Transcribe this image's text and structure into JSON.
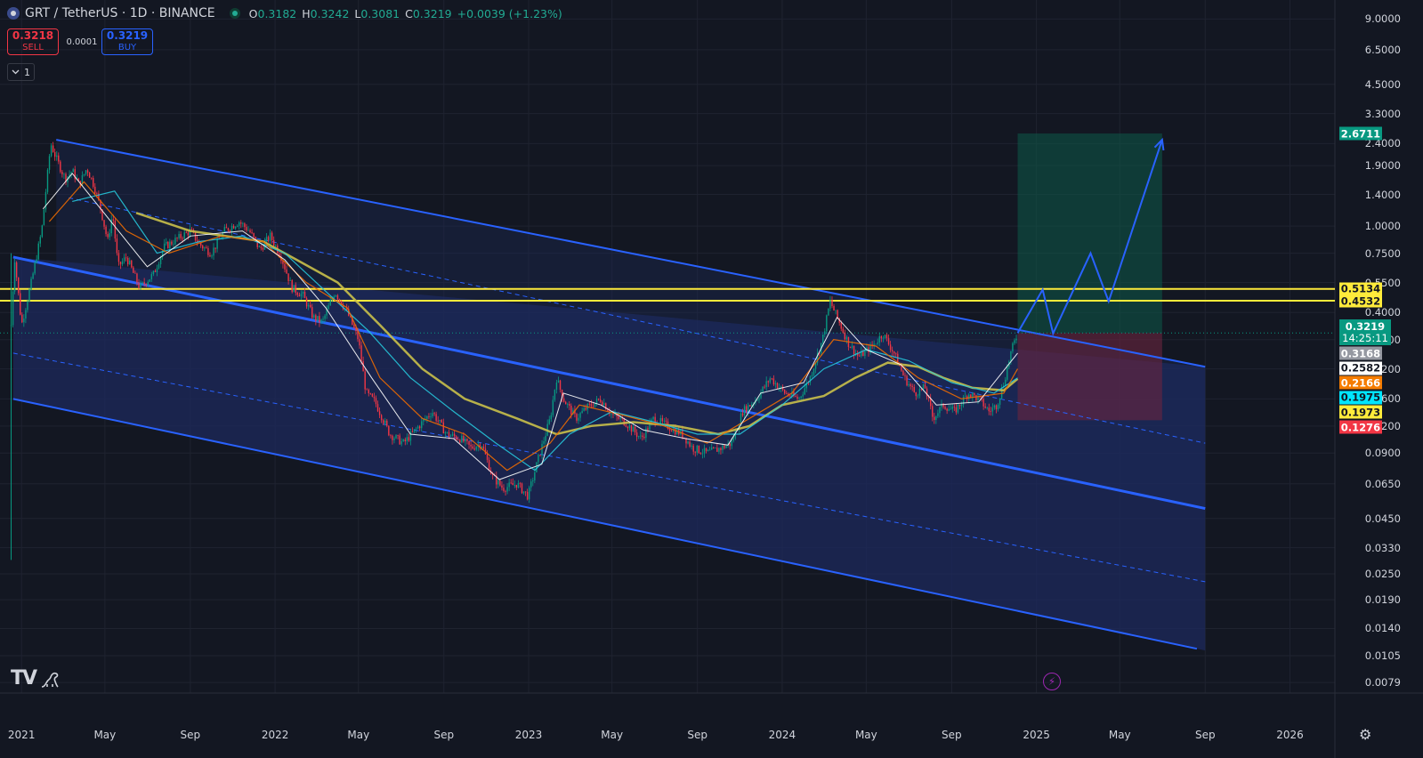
{
  "header": {
    "symbol": "GRT / TetherUS · 1D · BINANCE",
    "o_label": "O",
    "o_value": "0.3182",
    "h_label": "H",
    "h_value": "0.3242",
    "l_label": "L",
    "l_value": "0.3081",
    "c_label": "C",
    "c_value": "0.3219",
    "change": "+0.0039 (+1.23%)"
  },
  "trade": {
    "sell_price": "0.3218",
    "sell_label": "SELL",
    "spread": "0.0001",
    "buy_price": "0.3219",
    "buy_label": "BUY"
  },
  "interval_button": {
    "label": "1",
    "icon": "chevron-down-icon"
  },
  "price_labels": [
    {
      "value": "2.6711",
      "color": "#089981",
      "text_color": "#ffffff"
    },
    {
      "value": "0.5134",
      "color": "#ffeb3b",
      "text_color": "#131722"
    },
    {
      "value": "0.4532",
      "color": "#ffeb3b",
      "text_color": "#131722"
    },
    {
      "value": "0.3168",
      "color": "#9598a1",
      "text_color": "#ffffff"
    },
    {
      "value": "0.2582",
      "color": "#ffffff",
      "text_color": "#131722"
    },
    {
      "value": "0.2166",
      "color": "#f57c00",
      "text_color": "#ffffff"
    },
    {
      "value": "0.1975",
      "color": "#00e5ff",
      "text_color": "#131722"
    },
    {
      "value": "0.1973",
      "color": "#ffeb3b",
      "text_color": "#131722"
    },
    {
      "value": "0.1276",
      "color": "#f23645",
      "text_color": "#ffffff"
    }
  ],
  "current_price": {
    "value": "0.3219",
    "countdown": "14:25:11"
  },
  "footer": {
    "logo": "TV",
    "icons": [
      "dino-icon",
      "bolt-icon",
      "gear-icon"
    ]
  },
  "colors": {
    "background": "#131722",
    "up": "#089981",
    "down": "#f23645",
    "channel": "#2962ff",
    "channel_fill": "#1e2a5c",
    "ma_long": "#c9c04a",
    "ma_mid": "#26c6da",
    "ma_short": "#ef6c00",
    "ma_fast": "#ffffff",
    "target_zone": "#0d4a3f",
    "stop_zone": "#4a1f34"
  },
  "chart_data": {
    "type": "candlestick",
    "title": "GRT / TetherUS · 1D · BINANCE",
    "scale": "log",
    "ylim": [
      0.0068,
      10.5
    ],
    "xlim": [
      "2020-12-01",
      "2026-06-30"
    ],
    "y_ticks": [
      "9.0000",
      "6.5000",
      "4.5000",
      "3.3000",
      "2.4000",
      "1.9000",
      "1.4000",
      "1.0000",
      "0.7500",
      "0.5500",
      "0.4000",
      "0.3000",
      "0.2200",
      "0.1600",
      "0.1200",
      "0.0900",
      "0.0650",
      "0.0450",
      "0.0330",
      "0.0250",
      "0.0190",
      "0.0140",
      "0.0105",
      "0.0079"
    ],
    "x_ticks": [
      {
        "label": "2021",
        "date": "2021-01-01"
      },
      {
        "label": "May",
        "date": "2021-05-01"
      },
      {
        "label": "Sep",
        "date": "2021-09-01"
      },
      {
        "label": "2022",
        "date": "2022-01-01"
      },
      {
        "label": "May",
        "date": "2022-05-01"
      },
      {
        "label": "Sep",
        "date": "2022-09-01"
      },
      {
        "label": "2023",
        "date": "2023-01-01"
      },
      {
        "label": "May",
        "date": "2023-05-01"
      },
      {
        "label": "Sep",
        "date": "2023-09-01"
      },
      {
        "label": "2024",
        "date": "2024-01-01"
      },
      {
        "label": "May",
        "date": "2024-05-01"
      },
      {
        "label": "Sep",
        "date": "2024-09-01"
      },
      {
        "label": "2025",
        "date": "2025-01-01"
      },
      {
        "label": "May",
        "date": "2025-05-01"
      },
      {
        "label": "Sep",
        "date": "2025-09-01"
      },
      {
        "label": "2026",
        "date": "2026-01-01"
      }
    ],
    "price_path": [
      [
        "2020-12-17",
        0.35
      ],
      [
        "2020-12-22",
        0.72
      ],
      [
        "2021-01-01",
        0.35
      ],
      [
        "2021-01-15",
        0.55
      ],
      [
        "2021-01-30",
        0.95
      ],
      [
        "2021-02-12",
        2.4
      ],
      [
        "2021-02-20",
        2.05
      ],
      [
        "2021-03-05",
        1.65
      ],
      [
        "2021-03-15",
        1.8
      ],
      [
        "2021-03-25",
        1.55
      ],
      [
        "2021-04-05",
        1.85
      ],
      [
        "2021-04-15",
        1.55
      ],
      [
        "2021-04-25",
        1.2
      ],
      [
        "2021-05-05",
        0.85
      ],
      [
        "2021-05-12",
        1.15
      ],
      [
        "2021-05-20",
        0.65
      ],
      [
        "2021-06-01",
        0.72
      ],
      [
        "2021-06-20",
        0.52
      ],
      [
        "2021-07-10",
        0.6
      ],
      [
        "2021-07-25",
        0.8
      ],
      [
        "2021-08-15",
        0.88
      ],
      [
        "2021-09-01",
        0.95
      ],
      [
        "2021-09-15",
        0.82
      ],
      [
        "2021-10-01",
        0.75
      ],
      [
        "2021-10-20",
        0.95
      ],
      [
        "2021-11-10",
        1.05
      ],
      [
        "2021-11-25",
        0.95
      ],
      [
        "2021-12-10",
        0.78
      ],
      [
        "2021-12-25",
        0.9
      ],
      [
        "2022-01-10",
        0.72
      ],
      [
        "2022-01-25",
        0.52
      ],
      [
        "2022-02-10",
        0.48
      ],
      [
        "2022-02-25",
        0.38
      ],
      [
        "2022-03-10",
        0.36
      ],
      [
        "2022-03-28",
        0.5
      ],
      [
        "2022-04-15",
        0.4
      ],
      [
        "2022-05-01",
        0.3
      ],
      [
        "2022-05-12",
        0.17
      ],
      [
        "2022-05-25",
        0.155
      ],
      [
        "2022-06-15",
        0.11
      ],
      [
        "2022-07-05",
        0.1
      ],
      [
        "2022-08-01",
        0.125
      ],
      [
        "2022-08-15",
        0.14
      ],
      [
        "2022-09-05",
        0.11
      ],
      [
        "2022-09-25",
        0.105
      ],
      [
        "2022-10-10",
        0.095
      ],
      [
        "2022-10-25",
        0.1
      ],
      [
        "2022-11-10",
        0.07
      ],
      [
        "2022-11-25",
        0.062
      ],
      [
        "2022-12-15",
        0.065
      ],
      [
        "2022-12-31",
        0.057
      ],
      [
        "2023-01-15",
        0.085
      ],
      [
        "2023-02-01",
        0.13
      ],
      [
        "2023-02-10",
        0.2
      ],
      [
        "2023-02-20",
        0.16
      ],
      [
        "2023-03-10",
        0.13
      ],
      [
        "2023-03-25",
        0.145
      ],
      [
        "2023-04-15",
        0.16
      ],
      [
        "2023-05-01",
        0.135
      ],
      [
        "2023-05-20",
        0.125
      ],
      [
        "2023-06-12",
        0.105
      ],
      [
        "2023-06-30",
        0.13
      ],
      [
        "2023-07-20",
        0.12
      ],
      [
        "2023-08-10",
        0.11
      ],
      [
        "2023-08-25",
        0.095
      ],
      [
        "2023-09-15",
        0.09
      ],
      [
        "2023-10-05",
        0.095
      ],
      [
        "2023-10-20",
        0.1
      ],
      [
        "2023-11-05",
        0.14
      ],
      [
        "2023-11-25",
        0.16
      ],
      [
        "2023-12-15",
        0.2
      ],
      [
        "2024-01-05",
        0.17
      ],
      [
        "2024-01-25",
        0.16
      ],
      [
        "2024-02-10",
        0.2
      ],
      [
        "2024-02-28",
        0.3
      ],
      [
        "2024-03-10",
        0.45
      ],
      [
        "2024-03-20",
        0.38
      ],
      [
        "2024-04-05",
        0.29
      ],
      [
        "2024-04-20",
        0.25
      ],
      [
        "2024-05-10",
        0.28
      ],
      [
        "2024-05-25",
        0.32
      ],
      [
        "2024-06-10",
        0.26
      ],
      [
        "2024-06-25",
        0.2
      ],
      [
        "2024-07-10",
        0.17
      ],
      [
        "2024-07-25",
        0.18
      ],
      [
        "2024-08-05",
        0.13
      ],
      [
        "2024-08-20",
        0.15
      ],
      [
        "2024-09-05",
        0.14
      ],
      [
        "2024-09-25",
        0.17
      ],
      [
        "2024-10-10",
        0.16
      ],
      [
        "2024-10-25",
        0.14
      ],
      [
        "2024-11-05",
        0.15
      ],
      [
        "2024-11-15",
        0.19
      ],
      [
        "2024-11-25",
        0.26
      ],
      [
        "2024-12-05",
        0.3219
      ]
    ],
    "channel": {
      "upper": [
        [
          "2021-02-20",
          2.5
        ],
        [
          "2025-09-01",
          0.225
        ]
      ],
      "mid_upper_dashed": [
        [
          "2021-03-10",
          1.35
        ],
        [
          "2025-09-01",
          0.1
        ]
      ],
      "middle": [
        [
          "2020-12-20",
          0.72
        ],
        [
          "2025-09-01",
          0.05
        ]
      ],
      "mid_lower_dashed": [
        [
          "2020-12-20",
          0.26
        ],
        [
          "2025-09-01",
          0.023
        ]
      ],
      "lower": [
        [
          "2020-12-20",
          0.16
        ],
        [
          "2025-08-20",
          0.0113
        ]
      ],
      "fill_start": "2020-12-20",
      "fill_end_upper": "2025-09-01"
    },
    "horizontal_levels": [
      0.5134,
      0.4532
    ],
    "position": {
      "start": "2024-12-05",
      "end": "2025-07-01",
      "entry": 0.3219,
      "target": 2.6711,
      "stop": 0.1276
    },
    "projection_path": [
      [
        "2024-12-05",
        0.3219
      ],
      [
        "2025-01-10",
        0.51
      ],
      [
        "2025-01-25",
        0.32
      ],
      [
        "2025-03-20",
        0.75
      ],
      [
        "2025-04-15",
        0.45
      ],
      [
        "2025-07-01",
        2.5
      ]
    ],
    "moving_averages": [
      {
        "color": "#c9c04a",
        "width": 2.5,
        "points": [
          [
            "2021-06-15",
            1.15
          ],
          [
            "2021-09-01",
            0.95
          ],
          [
            "2021-12-15",
            0.85
          ],
          [
            "2022-02-01",
            0.7
          ],
          [
            "2022-04-01",
            0.55
          ],
          [
            "2022-06-01",
            0.35
          ],
          [
            "2022-08-01",
            0.22
          ],
          [
            "2022-10-01",
            0.16
          ],
          [
            "2022-12-15",
            0.13
          ],
          [
            "2023-02-10",
            0.11
          ],
          [
            "2023-04-01",
            0.12
          ],
          [
            "2023-06-01",
            0.125
          ],
          [
            "2023-08-01",
            0.12
          ],
          [
            "2023-10-01",
            0.11
          ],
          [
            "2023-11-15",
            0.12
          ],
          [
            "2024-01-01",
            0.15
          ],
          [
            "2024-03-01",
            0.165
          ],
          [
            "2024-04-15",
            0.2
          ],
          [
            "2024-06-01",
            0.235
          ],
          [
            "2024-07-15",
            0.225
          ],
          [
            "2024-08-20",
            0.2
          ],
          [
            "2024-10-01",
            0.18
          ],
          [
            "2024-11-15",
            0.175
          ],
          [
            "2024-12-05",
            0.198
          ]
        ]
      },
      {
        "color": "#26c6da",
        "width": 1.2,
        "points": [
          [
            "2021-03-15",
            1.3
          ],
          [
            "2021-05-15",
            1.45
          ],
          [
            "2021-07-15",
            0.75
          ],
          [
            "2021-09-15",
            0.85
          ],
          [
            "2021-11-15",
            0.9
          ],
          [
            "2022-01-15",
            0.75
          ],
          [
            "2022-03-15",
            0.5
          ],
          [
            "2022-05-15",
            0.33
          ],
          [
            "2022-07-15",
            0.2
          ],
          [
            "2022-09-15",
            0.14
          ],
          [
            "2022-11-15",
            0.1
          ],
          [
            "2023-01-10",
            0.075
          ],
          [
            "2023-03-01",
            0.11
          ],
          [
            "2023-05-01",
            0.14
          ],
          [
            "2023-07-01",
            0.125
          ],
          [
            "2023-09-01",
            0.11
          ],
          [
            "2023-11-01",
            0.11
          ],
          [
            "2024-01-01",
            0.15
          ],
          [
            "2024-03-01",
            0.22
          ],
          [
            "2024-05-01",
            0.27
          ],
          [
            "2024-07-01",
            0.24
          ],
          [
            "2024-09-01",
            0.19
          ],
          [
            "2024-11-01",
            0.17
          ],
          [
            "2024-12-05",
            0.2
          ]
        ]
      },
      {
        "color": "#ef6c00",
        "width": 1.2,
        "points": [
          [
            "2021-02-10",
            1.05
          ],
          [
            "2021-04-01",
            1.6
          ],
          [
            "2021-06-01",
            0.95
          ],
          [
            "2021-08-01",
            0.75
          ],
          [
            "2021-10-15",
            0.9
          ],
          [
            "2021-12-15",
            0.85
          ],
          [
            "2022-02-15",
            0.55
          ],
          [
            "2022-04-15",
            0.42
          ],
          [
            "2022-06-01",
            0.2
          ],
          [
            "2022-08-01",
            0.13
          ],
          [
            "2022-10-01",
            0.11
          ],
          [
            "2022-12-01",
            0.075
          ],
          [
            "2023-02-01",
            0.1
          ],
          [
            "2023-03-15",
            0.15
          ],
          [
            "2023-05-15",
            0.135
          ],
          [
            "2023-07-15",
            0.12
          ],
          [
            "2023-09-15",
            0.1
          ],
          [
            "2023-11-15",
            0.13
          ],
          [
            "2024-01-15",
            0.17
          ],
          [
            "2024-03-15",
            0.3
          ],
          [
            "2024-05-15",
            0.28
          ],
          [
            "2024-07-15",
            0.2
          ],
          [
            "2024-09-15",
            0.16
          ],
          [
            "2024-11-15",
            0.17
          ],
          [
            "2024-12-05",
            0.22
          ]
        ]
      },
      {
        "color": "#ffffff",
        "width": 1,
        "points": [
          [
            "2021-02-01",
            1.2
          ],
          [
            "2021-03-15",
            1.75
          ],
          [
            "2021-05-15",
            1.0
          ],
          [
            "2021-07-01",
            0.65
          ],
          [
            "2021-09-01",
            0.9
          ],
          [
            "2021-11-15",
            0.95
          ],
          [
            "2022-01-15",
            0.7
          ],
          [
            "2022-03-15",
            0.42
          ],
          [
            "2022-05-20",
            0.2
          ],
          [
            "2022-07-15",
            0.11
          ],
          [
            "2022-09-15",
            0.105
          ],
          [
            "2022-11-20",
            0.068
          ],
          [
            "2023-01-20",
            0.08
          ],
          [
            "2023-02-20",
            0.17
          ],
          [
            "2023-04-15",
            0.15
          ],
          [
            "2023-06-15",
            0.115
          ],
          [
            "2023-08-15",
            0.105
          ],
          [
            "2023-10-15",
            0.098
          ],
          [
            "2023-12-01",
            0.17
          ],
          [
            "2024-02-01",
            0.19
          ],
          [
            "2024-03-20",
            0.38
          ],
          [
            "2024-05-01",
            0.27
          ],
          [
            "2024-06-20",
            0.23
          ],
          [
            "2024-08-10",
            0.15
          ],
          [
            "2024-10-10",
            0.155
          ],
          [
            "2024-12-05",
            0.26
          ]
        ]
      }
    ]
  }
}
